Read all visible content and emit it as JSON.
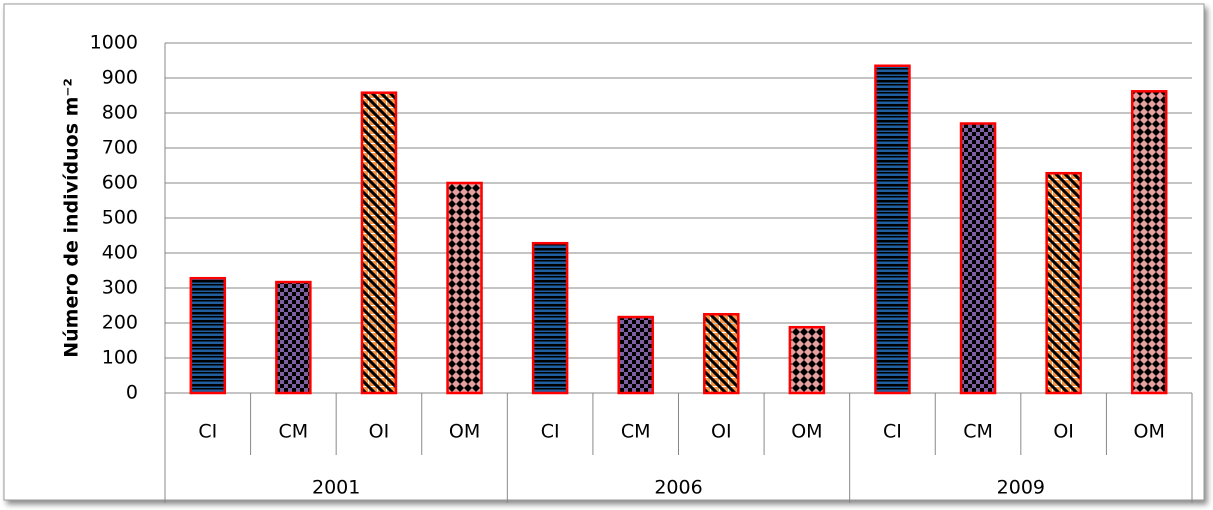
{
  "chart_data": {
    "type": "bar",
    "ylabel": "Número de indivíduos m⁻²",
    "categories": [
      "CI",
      "CM",
      "OI",
      "OM",
      "CI",
      "CM",
      "OI",
      "OM",
      "CI",
      "CM",
      "OI",
      "OM"
    ],
    "groups": [
      "2001",
      "2006",
      "2009"
    ],
    "values": [
      328,
      317,
      858,
      600,
      428,
      217,
      225,
      188,
      935,
      770,
      628,
      862
    ],
    "colors": [
      "#1f5f9f",
      "#7e5fa0",
      "#f79646",
      "#e6a0a0",
      "#1f5f9f",
      "#7e5fa0",
      "#f79646",
      "#e6a0a0",
      "#1f5f9f",
      "#7e5fa0",
      "#f79646",
      "#e6a0a0"
    ],
    "patterns": [
      "hstripe",
      "check",
      "diag",
      "diamond",
      "hstripe",
      "check",
      "diag",
      "diamond",
      "hstripe",
      "check",
      "diag",
      "diamond"
    ],
    "edge_color": "#ff0000",
    "ylim": [
      0,
      1000
    ],
    "yticks": [
      0,
      100,
      200,
      300,
      400,
      500,
      600,
      700,
      800,
      900,
      1000
    ],
    "grid": true
  }
}
